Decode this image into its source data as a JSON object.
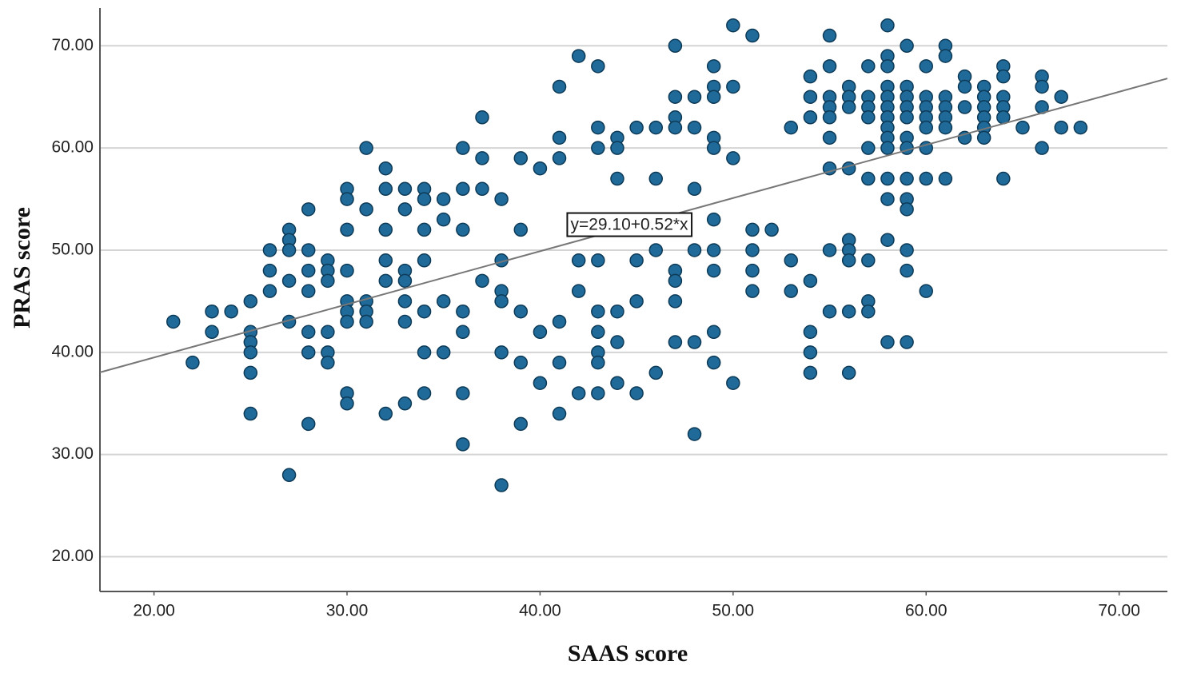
{
  "chart_data": {
    "type": "scatter",
    "x_label": "SAAS score",
    "y_label": "PRAS score",
    "annotation": "y=29.10+0.52*x",
    "fit": {
      "intercept": 29.1,
      "slope": 0.52
    },
    "color": "#1f6a99",
    "grid": true,
    "xlim": [
      17.2,
      72.5
    ],
    "ylim": [
      16.6,
      73.7
    ],
    "xticks": [
      {
        "value": 20,
        "label": "20.00"
      },
      {
        "value": 30,
        "label": "30.00"
      },
      {
        "value": 40,
        "label": "40.00"
      },
      {
        "value": 50,
        "label": "50.00"
      },
      {
        "value": 60,
        "label": "60.00"
      },
      {
        "value": 70,
        "label": "70.00"
      }
    ],
    "yticks": [
      {
        "value": 20,
        "label": "20.00"
      },
      {
        "value": 30,
        "label": "30.00"
      },
      {
        "value": 40,
        "label": "40.00"
      },
      {
        "value": 50,
        "label": "50.00"
      },
      {
        "value": 60,
        "label": "60.00"
      },
      {
        "value": 70,
        "label": "70.00"
      }
    ],
    "x": [
      21,
      22,
      23,
      23,
      24,
      25,
      25,
      25,
      25,
      25,
      25,
      26,
      26,
      26,
      27,
      27,
      27,
      27,
      27,
      27,
      28,
      28,
      28,
      28,
      28,
      28,
      28,
      29,
      29,
      29,
      29,
      29,
      29,
      30,
      30,
      30,
      30,
      30,
      30,
      30,
      30,
      30,
      31,
      31,
      31,
      31,
      31,
      32,
      32,
      32,
      32,
      32,
      32,
      33,
      33,
      33,
      33,
      33,
      33,
      33,
      34,
      34,
      34,
      34,
      34,
      34,
      34,
      35,
      35,
      35,
      35,
      36,
      36,
      36,
      36,
      36,
      36,
      36,
      37,
      37,
      37,
      37,
      38,
      38,
      38,
      38,
      38,
      38,
      39,
      39,
      39,
      39,
      39,
      40,
      40,
      40,
      41,
      41,
      41,
      41,
      41,
      41,
      42,
      42,
      42,
      42,
      43,
      43,
      43,
      43,
      43,
      43,
      43,
      43,
      43,
      44,
      44,
      44,
      44,
      44,
      44,
      45,
      45,
      45,
      45,
      46,
      46,
      46,
      46,
      47,
      47,
      47,
      47,
      47,
      47,
      47,
      47,
      48,
      48,
      48,
      48,
      48,
      48,
      49,
      49,
      49,
      49,
      49,
      49,
      49,
      49,
      49,
      49,
      50,
      50,
      50,
      50,
      51,
      51,
      51,
      51,
      51,
      52,
      53,
      53,
      53,
      54,
      54,
      54,
      54,
      54,
      54,
      54,
      55,
      55,
      55,
      55,
      55,
      55,
      55,
      55,
      55,
      56,
      56,
      56,
      56,
      56,
      56,
      56,
      56,
      56,
      57,
      57,
      57,
      57,
      57,
      57,
      57,
      57,
      57,
      58,
      58,
      58,
      58,
      58,
      58,
      58,
      58,
      58,
      58,
      58,
      58,
      58,
      58,
      59,
      59,
      59,
      59,
      59,
      59,
      59,
      59,
      59,
      59,
      59,
      59,
      59,
      60,
      60,
      60,
      60,
      60,
      60,
      60,
      60,
      61,
      61,
      61,
      61,
      61,
      61,
      61,
      62,
      62,
      62,
      62,
      63,
      63,
      63,
      63,
      63,
      63,
      64,
      64,
      64,
      64,
      64,
      64,
      65,
      66,
      66,
      66,
      66,
      67,
      67,
      68
    ],
    "y": [
      43,
      39,
      44,
      42,
      44,
      45,
      42,
      41,
      40,
      38,
      34,
      50,
      48,
      46,
      52,
      51,
      50,
      47,
      43,
      28,
      54,
      50,
      48,
      46,
      42,
      40,
      33,
      49,
      48,
      47,
      42,
      40,
      39,
      56,
      55,
      52,
      48,
      45,
      44,
      43,
      36,
      35,
      60,
      54,
      45,
      44,
      43,
      58,
      56,
      52,
      49,
      47,
      34,
      56,
      54,
      48,
      47,
      45,
      43,
      35,
      56,
      55,
      52,
      49,
      44,
      40,
      36,
      55,
      53,
      45,
      40,
      60,
      56,
      52,
      44,
      42,
      36,
      31,
      63,
      59,
      56,
      47,
      55,
      49,
      46,
      45,
      40,
      27,
      59,
      52,
      44,
      39,
      33,
      58,
      42,
      37,
      66,
      61,
      59,
      43,
      39,
      34,
      69,
      49,
      46,
      36,
      68,
      62,
      60,
      49,
      44,
      42,
      40,
      39,
      36,
      61,
      60,
      57,
      44,
      41,
      37,
      62,
      49,
      45,
      36,
      62,
      57,
      50,
      38,
      70,
      65,
      63,
      62,
      48,
      47,
      45,
      41,
      65,
      62,
      56,
      50,
      41,
      32,
      68,
      66,
      65,
      61,
      60,
      53,
      50,
      48,
      42,
      39,
      72,
      66,
      59,
      37,
      71,
      52,
      50,
      48,
      46,
      52,
      62,
      49,
      46,
      67,
      65,
      63,
      47,
      42,
      40,
      38,
      71,
      68,
      65,
      64,
      63,
      61,
      58,
      50,
      44,
      66,
      65,
      64,
      58,
      51,
      50,
      49,
      44,
      38,
      68,
      65,
      64,
      63,
      60,
      57,
      49,
      45,
      44,
      72,
      69,
      68,
      66,
      65,
      64,
      63,
      62,
      61,
      60,
      57,
      55,
      51,
      41,
      70,
      66,
      65,
      64,
      63,
      61,
      60,
      57,
      55,
      54,
      50,
      48,
      41,
      68,
      65,
      64,
      63,
      62,
      60,
      57,
      46,
      70,
      69,
      65,
      64,
      63,
      62,
      57,
      67,
      66,
      64,
      61,
      66,
      65,
      64,
      63,
      62,
      61,
      68,
      67,
      65,
      64,
      63,
      57,
      62,
      67,
      66,
      64,
      60,
      65,
      62,
      62
    ]
  }
}
